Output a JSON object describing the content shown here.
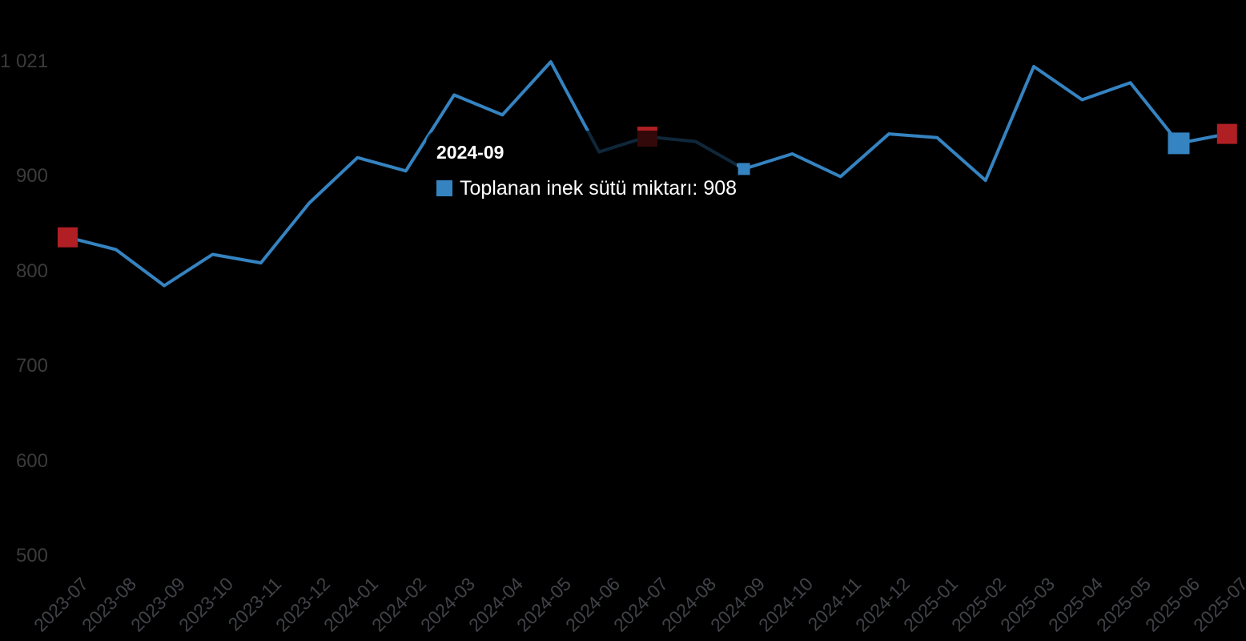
{
  "app": {
    "background_color": "#000000",
    "y_axis_label_color": "#3b3b3b",
    "x_axis_label_color": "#414348"
  },
  "tooltip": {
    "header": "2024-09",
    "series_label": "Toplanan inek sütü miktarı",
    "value": "908",
    "line": "Toplanan inek sütü miktarı: 908",
    "swatch_color": "#3583c1",
    "background": "rgba(0,0,0,0.70)"
  },
  "chart_data": {
    "type": "line",
    "title": "",
    "xlabel": "",
    "ylabel": "",
    "grid": false,
    "legend_position": "none",
    "ylim": [
      500,
      1021
    ],
    "yticks": [
      {
        "value": 500,
        "label": "500"
      },
      {
        "value": 600,
        "label": "600"
      },
      {
        "value": 700,
        "label": "700"
      },
      {
        "value": 800,
        "label": "800"
      },
      {
        "value": 900,
        "label": "900"
      },
      {
        "value": 1021,
        "label": "1 021"
      }
    ],
    "categories": [
      "2023-07",
      "2023-08",
      "2023-09",
      "2023-10",
      "2023-11",
      "2023-12",
      "2024-01",
      "2024-02",
      "2024-03",
      "2024-04",
      "2024-05",
      "2024-06",
      "2024-07",
      "2024-08",
      "2024-09",
      "2024-10",
      "2024-11",
      "2024-12",
      "2025-01",
      "2025-02",
      "2025-03",
      "2025-04",
      "2025-05",
      "2025-06",
      "2025-07"
    ],
    "series": [
      {
        "name": "Toplanan inek sütü miktarı",
        "color": "#3583c1",
        "line_width": 4,
        "values": [
          836,
          823,
          785,
          818,
          809,
          872,
          920,
          906,
          986,
          965,
          1021,
          926,
          942,
          937,
          908,
          924,
          900,
          945,
          941,
          896,
          1016,
          981,
          999,
          935,
          945
        ]
      }
    ],
    "hovered_point": {
      "category": "2024-09",
      "value": 908
    },
    "markers": [
      {
        "category": "2023-07",
        "color": "#b01f24",
        "size": 25,
        "shape": "square"
      },
      {
        "category": "2024-07",
        "color": "#b01f24",
        "size": 25,
        "shape": "square"
      },
      {
        "category": "2024-09",
        "color": "#3583c1",
        "size": 15,
        "shape": "square"
      },
      {
        "category": "2025-06",
        "color": "#3583c1",
        "size": 27,
        "shape": "square"
      },
      {
        "category": "2025-07",
        "color": "#b01f24",
        "size": 25,
        "shape": "square"
      }
    ]
  }
}
